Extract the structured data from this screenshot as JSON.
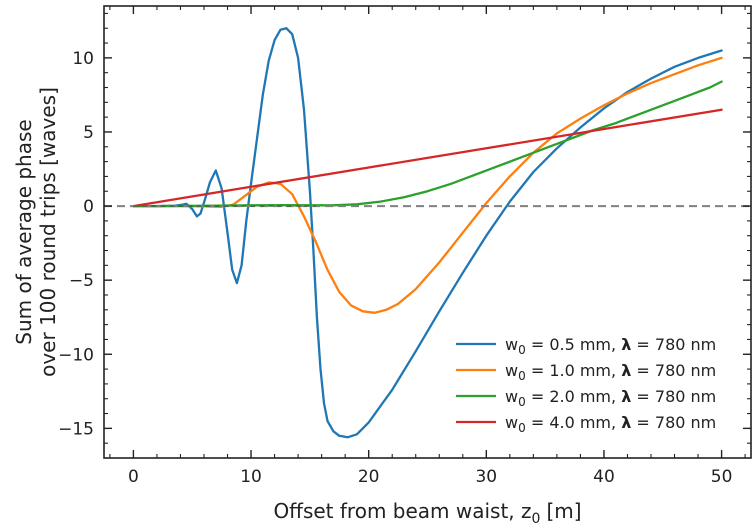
{
  "chart_data": {
    "type": "line",
    "xlabel": "Offset from beam waist, z",
    "xlabel_sub": "0",
    "xlabel_unit": "[m]",
    "ylabel_line1": "Sum of average phase",
    "ylabel_line2": "over 100 round trips [waves]",
    "xlim": [
      -2.5,
      52.5
    ],
    "ylim": [
      -17,
      13.5
    ],
    "xticks": [
      0,
      10,
      20,
      30,
      40,
      50
    ],
    "xtick_labels": [
      "0",
      "10",
      "20",
      "30",
      "40",
      "50"
    ],
    "yticks": [
      -15,
      -10,
      -5,
      0,
      5,
      10
    ],
    "ytick_labels": [
      "−15",
      "−10",
      "−5",
      "0",
      "5",
      "10"
    ],
    "reference_line": {
      "y": 0,
      "style": "dashed",
      "color": "#808080"
    },
    "legend_position": "lower-right",
    "grid": false,
    "series": [
      {
        "name": "w0 = 0.5 mm, λ = 780 nm",
        "legend": {
          "pre": "w",
          "sub": "0",
          "mid": " = 0.5 mm, ",
          "bold": "λ",
          "post": " = 780 nm"
        },
        "color": "#1f77b4",
        "x": [
          0,
          2,
          3.5,
          4.2,
          4.5,
          5,
          5.4,
          5.7,
          6.1,
          6.5,
          7.0,
          7.5,
          8.0,
          8.4,
          8.8,
          9.2,
          9.6,
          10.0,
          10.5,
          11.0,
          11.5,
          12.0,
          12.5,
          13.0,
          13.5,
          14.0,
          14.5,
          15.0,
          15.3,
          15.6,
          15.9,
          16.2,
          16.5,
          17.0,
          17.5,
          18.2,
          19.0,
          20.0,
          22.0,
          24.0,
          26.0,
          28.0,
          30.0,
          32.0,
          34.0,
          36.0,
          38.0,
          40.0,
          42.0,
          44.0,
          46.0,
          48.0,
          50.0
        ],
        "y": [
          0,
          0,
          0.02,
          0.1,
          0.15,
          -0.2,
          -0.7,
          -0.5,
          0.5,
          1.6,
          2.4,
          1.2,
          -1.8,
          -4.3,
          -5.2,
          -4.0,
          -1.0,
          1.5,
          4.5,
          7.5,
          9.8,
          11.2,
          11.9,
          12.0,
          11.6,
          10.0,
          6.5,
          1.0,
          -3.0,
          -7.5,
          -11.0,
          -13.3,
          -14.5,
          -15.2,
          -15.5,
          -15.6,
          -15.4,
          -14.6,
          -12.4,
          -9.8,
          -7.1,
          -4.5,
          -2.0,
          0.3,
          2.3,
          3.9,
          5.3,
          6.6,
          7.7,
          8.6,
          9.4,
          10.0,
          10.5
        ]
      },
      {
        "name": "w0 = 1.0 mm, λ = 780 nm",
        "legend": {
          "pre": "w",
          "sub": "0",
          "mid": " = 1.0 mm, ",
          "bold": "λ",
          "post": " = 780 nm"
        },
        "color": "#ff7f0e",
        "x": [
          0,
          4,
          6,
          7.5,
          8.5,
          9.5,
          10.5,
          11.5,
          12.5,
          13.5,
          14.5,
          15.5,
          16.5,
          17.5,
          18.5,
          19.5,
          20.5,
          21.5,
          22.5,
          24,
          26,
          28,
          30,
          32,
          34,
          36,
          38,
          40,
          42,
          44,
          46,
          48,
          50
        ],
        "y": [
          0,
          0,
          -0.02,
          -0.05,
          0.1,
          0.7,
          1.3,
          1.6,
          1.5,
          0.8,
          -0.7,
          -2.4,
          -4.3,
          -5.8,
          -6.7,
          -7.1,
          -7.2,
          -7.0,
          -6.6,
          -5.6,
          -3.8,
          -1.8,
          0.2,
          2.0,
          3.6,
          4.9,
          5.9,
          6.8,
          7.6,
          8.3,
          8.9,
          9.5,
          10.0
        ]
      },
      {
        "name": "w0 = 2.0 mm, λ = 780 nm",
        "legend": {
          "pre": "w",
          "sub": "0",
          "mid": " = 2.0 mm, ",
          "bold": "λ",
          "post": " = 780 nm"
        },
        "color": "#2ca02c",
        "x": [
          0,
          6,
          10,
          13,
          15,
          17,
          19,
          21,
          23,
          25,
          27,
          29,
          31,
          33,
          35,
          37,
          39,
          41,
          43,
          45,
          47,
          49,
          50
        ],
        "y": [
          0,
          0.02,
          0.05,
          0.06,
          0.05,
          0.05,
          0.12,
          0.3,
          0.6,
          1.0,
          1.5,
          2.1,
          2.7,
          3.3,
          3.9,
          4.5,
          5.1,
          5.6,
          6.2,
          6.8,
          7.4,
          8.0,
          8.4
        ]
      },
      {
        "name": "w0 = 4.0 mm, λ = 780 nm",
        "legend": {
          "pre": "w",
          "sub": "0",
          "mid": " = 4.0 mm, ",
          "bold": "λ",
          "post": " = 780 nm"
        },
        "color": "#d62728",
        "x": [
          0,
          10,
          20,
          30,
          40,
          50
        ],
        "y": [
          0,
          1.3,
          2.6,
          3.9,
          5.2,
          6.5
        ]
      }
    ]
  }
}
